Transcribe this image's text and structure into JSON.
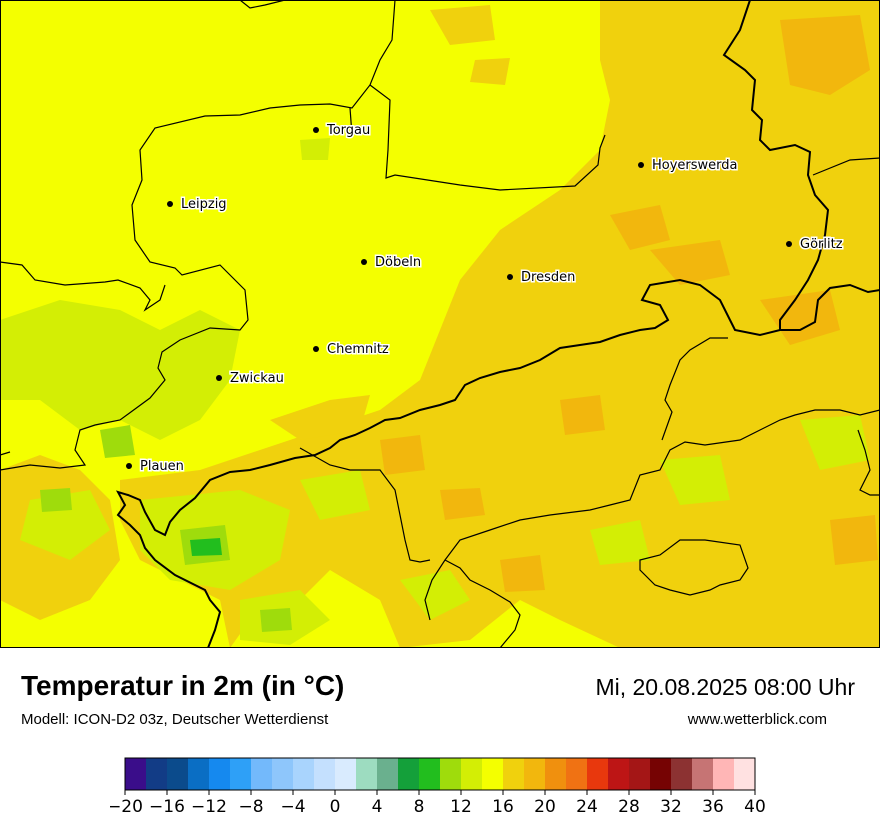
{
  "header": {
    "title": "Temperatur in 2m (in °C)",
    "model": "Modell: ICON-D2 03z, Deutscher Wetterdienst",
    "datetime": "Mi, 20.08.2025 08:00 Uhr",
    "website": "www.wetterblick.com"
  },
  "cities": [
    {
      "name": "Torgau"
    },
    {
      "name": "Hoyerswerda"
    },
    {
      "name": "Leipzig"
    },
    {
      "name": "Görlitz"
    },
    {
      "name": "Döbeln"
    },
    {
      "name": "Dresden"
    },
    {
      "name": "Chemnitz"
    },
    {
      "name": "Zwickau"
    },
    {
      "name": "Plauen"
    }
  ],
  "legend": {
    "colors": [
      "#3a0d8a",
      "#123c86",
      "#0b4b8c",
      "#0a6ec4",
      "#1589ef",
      "#2ea0f7",
      "#73b9fb",
      "#8ec6fb",
      "#a9d4fd",
      "#c4e0fe",
      "#d9ebfe",
      "#9ddcc0",
      "#6ab08e",
      "#14a03a",
      "#22be1e",
      "#9fdc0c",
      "#d3ee05",
      "#f4ff00",
      "#f0d10d",
      "#f2b70d",
      "#f0900e",
      "#f07213",
      "#e8380d",
      "#bd1515",
      "#a41616",
      "#760303",
      "#8c3232",
      "#c67474",
      "#ffb6b6",
      "#ffe1e1"
    ],
    "ticks": [
      "−20",
      "−16",
      "−12",
      "−8",
      "−4",
      "0",
      "4",
      "8",
      "12",
      "16",
      "20",
      "24",
      "28",
      "32",
      "36",
      "40"
    ],
    "min": -20,
    "max": 40
  },
  "map_colors": {
    "base": "#f4ff00",
    "warm": "#f0d10d",
    "warmer": "#f2b70d",
    "cool": "#d3ee05",
    "cooler": "#9fdc0c",
    "coolest": "#22be1e",
    "border": "#000000"
  }
}
